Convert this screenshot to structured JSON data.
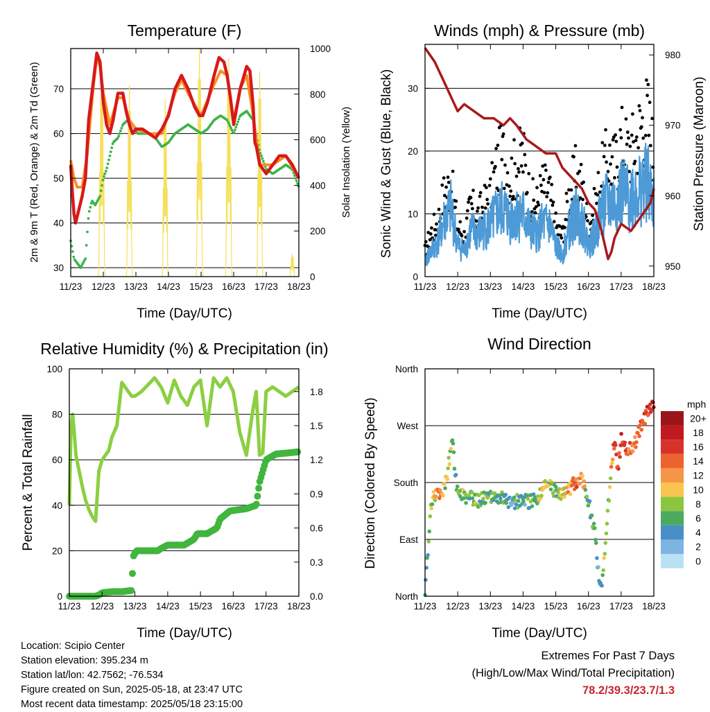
{
  "colors": {
    "temp2m": "#d7191c",
    "temp9m": "#fb8f21",
    "dewpoint": "#3cb34a",
    "solar": "#f6e05a",
    "wind": "#4d9ad6",
    "gust": "#000000",
    "pressure": "#a8191c",
    "rh": "#8ccf42",
    "precip": "#41b53e"
  },
  "chart_data": [
    {
      "type": "line",
      "title": "Temperature (F)",
      "xlabel": "Time (Day/UTC)",
      "ylabel": "2m & 9m T (Red, Orange) & 2m Td (Green)",
      "y2label": "Solar Insolation (Yellow)",
      "x_ticks": [
        "11/23",
        "12/23",
        "13/23",
        "14/23",
        "15/23",
        "16/23",
        "17/23",
        "18/23"
      ],
      "x_range": [
        0,
        7
      ],
      "ylim": [
        28,
        79
      ],
      "y_ticks": [
        30,
        40,
        50,
        60,
        70
      ],
      "y2lim": [
        0,
        1000
      ],
      "y2_ticks": [
        0,
        200,
        400,
        600,
        800,
        1000
      ],
      "grid": true,
      "series": [
        {
          "key": "temp2m",
          "x": [
            0,
            0.05,
            0.1,
            0.15,
            0.25,
            0.35,
            0.45,
            0.55,
            0.7,
            0.8,
            0.9,
            1.0,
            1.1,
            1.2,
            1.3,
            1.45,
            1.6,
            1.7,
            1.8,
            1.9,
            2.0,
            2.2,
            2.4,
            2.6,
            2.8,
            3.0,
            3.2,
            3.4,
            3.6,
            3.8,
            3.95,
            4.05,
            4.2,
            4.4,
            4.55,
            4.7,
            4.8,
            4.9,
            5.0,
            5.2,
            5.4,
            5.5,
            5.6,
            5.65,
            5.7,
            5.8,
            6.0,
            6.2,
            6.4,
            6.6,
            6.8,
            7.0
          ],
          "y": [
            53,
            47,
            42,
            40,
            43,
            46,
            50,
            63,
            72,
            78,
            76,
            67,
            62,
            60,
            63,
            69,
            69,
            65,
            62,
            60,
            61,
            61,
            60,
            59,
            61,
            64,
            70,
            73,
            70,
            66,
            64,
            64,
            67,
            73,
            77,
            76,
            73,
            68,
            62,
            70,
            75,
            74,
            66,
            58,
            57,
            53,
            51,
            53,
            55,
            55,
            53,
            50
          ]
        },
        {
          "key": "temp9m",
          "x": [
            0,
            0.1,
            0.2,
            0.35,
            0.5,
            0.7,
            0.8,
            0.9,
            1.0,
            1.2,
            1.45,
            1.6,
            1.8,
            2.0,
            2.4,
            2.8,
            3.2,
            3.4,
            3.6,
            4.0,
            4.4,
            4.6,
            4.8,
            5.0,
            5.2,
            5.4,
            5.6,
            5.8,
            6.2,
            6.6,
            7.0
          ],
          "y": [
            54,
            50,
            48,
            48,
            55,
            71,
            77,
            75,
            69,
            62,
            68,
            68,
            63,
            61,
            60,
            60,
            69,
            72,
            69,
            64,
            71,
            74,
            73,
            63,
            70,
            73,
            64,
            53,
            53,
            55,
            50
          ]
        },
        {
          "key": "dewpoint",
          "x": [
            0,
            0.1,
            0.2,
            0.3,
            0.45,
            0.55,
            0.65,
            0.75,
            0.9,
            1.0,
            1.1,
            1.2,
            1.3,
            1.45,
            1.6,
            1.75,
            1.9,
            2.05,
            2.2,
            2.4,
            2.6,
            2.8,
            3.0,
            3.2,
            3.4,
            3.6,
            3.8,
            4.0,
            4.2,
            4.4,
            4.6,
            4.8,
            5.0,
            5.2,
            5.4,
            5.6,
            5.8,
            6.0,
            6.2,
            6.4,
            6.6,
            6.8,
            7.0
          ],
          "y": [
            36,
            32,
            31,
            30,
            32,
            42,
            45,
            44,
            46,
            50,
            52,
            55,
            58,
            59,
            62,
            63,
            62,
            60,
            60,
            60,
            59,
            57,
            58,
            60,
            61,
            62,
            61,
            60,
            61,
            63,
            64,
            63,
            60,
            64,
            65,
            63,
            56,
            52,
            51,
            52,
            53,
            52,
            48
          ]
        },
        {
          "key": "solar",
          "y_axis": "right",
          "peaks": [
            {
              "center": 0.95,
              "width": 0.2,
              "value": 920
            },
            {
              "center": 1.8,
              "width": 0.18,
              "value": 840
            },
            {
              "center": 2.9,
              "width": 0.18,
              "value": 780
            },
            {
              "center": 3.95,
              "width": 0.2,
              "value": 1000
            },
            {
              "center": 4.85,
              "width": 0.2,
              "value": 960
            },
            {
              "center": 5.8,
              "width": 0.18,
              "value": 900
            },
            {
              "center": 6.8,
              "width": 0.15,
              "value": 100
            }
          ]
        }
      ]
    },
    {
      "type": "scatter",
      "title": "Winds (mph) & Pressure (mb)",
      "xlabel": "Time (Day/UTC)",
      "ylabel": "Sonic Wind & Gust (Blue, Black)",
      "y2label": "Station Pressure (Maroon)",
      "x_ticks": [
        "11/23",
        "12/23",
        "13/23",
        "14/23",
        "15/23",
        "16/23",
        "17/23",
        "18/23"
      ],
      "x_range": [
        0,
        7
      ],
      "ylim": [
        0,
        37
      ],
      "y_ticks": [
        0,
        10,
        20,
        30
      ],
      "y2lim": [
        948.5,
        981.5
      ],
      "y2_ticks": [
        950,
        960,
        970,
        980
      ],
      "grid": true,
      "series": [
        {
          "key": "gust",
          "x": [
            0,
            0.2,
            0.4,
            0.6,
            0.8,
            1.0,
            1.2,
            1.4,
            1.6,
            1.8,
            2.0,
            2.2,
            2.4,
            2.6,
            2.8,
            3.0,
            3.2,
            3.4,
            3.6,
            3.8,
            4.0,
            4.2,
            4.4,
            4.6,
            4.8,
            5.0,
            5.2,
            5.4,
            5.6,
            5.8,
            6.0,
            6.2,
            6.4,
            6.6,
            6.8,
            7.0
          ],
          "y": [
            5,
            9,
            11,
            17,
            18,
            10,
            8,
            14,
            12,
            14,
            16,
            22,
            24,
            20,
            22,
            24,
            16,
            14,
            18,
            17,
            10,
            8,
            16,
            20,
            18,
            10,
            14,
            20,
            24,
            22,
            27,
            25,
            26,
            30,
            32,
            24
          ]
        },
        {
          "key": "wind",
          "x": [
            0,
            0.2,
            0.4,
            0.6,
            0.8,
            1.0,
            1.2,
            1.4,
            1.6,
            1.8,
            2.0,
            2.2,
            2.4,
            2.6,
            2.8,
            3.0,
            3.2,
            3.4,
            3.6,
            3.8,
            4.0,
            4.2,
            4.4,
            4.6,
            4.8,
            5.0,
            5.2,
            5.4,
            5.6,
            5.8,
            6.0,
            6.2,
            6.4,
            6.6,
            6.8,
            7.0
          ],
          "y": [
            3,
            5,
            7,
            11,
            13,
            6,
            5,
            9,
            8,
            9,
            10,
            12,
            13,
            11,
            12,
            12,
            9,
            8,
            10,
            10,
            6,
            4,
            9,
            12,
            11,
            6,
            8,
            13,
            14,
            14,
            16,
            15,
            16,
            17,
            18,
            14
          ]
        },
        {
          "key": "pressure",
          "y_axis": "right",
          "x": [
            0,
            0.3,
            0.6,
            0.9,
            1.0,
            1.2,
            1.5,
            1.8,
            2.1,
            2.4,
            2.6,
            2.8,
            3.1,
            3.4,
            3.7,
            4.0,
            4.2,
            4.4,
            4.6,
            4.8,
            5.0,
            5.2,
            5.4,
            5.6,
            5.7,
            5.8,
            6.0,
            6.3,
            6.6,
            6.9,
            7.0
          ],
          "y": [
            981,
            979,
            976,
            973,
            972,
            973,
            972,
            971,
            971,
            970,
            971,
            970,
            968,
            967,
            966,
            966,
            964,
            963,
            962,
            961,
            959,
            958,
            955,
            951,
            952,
            954,
            956,
            955,
            957,
            959,
            961
          ]
        }
      ]
    },
    {
      "type": "line",
      "title": "Relative Humidity (%) & Precipitation (in)",
      "xlabel": "Time (Day/UTC)",
      "ylabel": "Percent & Total Rainfall",
      "x_ticks": [
        "11/23",
        "12/23",
        "13/23",
        "14/23",
        "15/23",
        "16/23",
        "17/23",
        "18/23"
      ],
      "x_range": [
        0,
        7
      ],
      "ylim": [
        0,
        100
      ],
      "y_ticks": [
        0,
        20,
        40,
        60,
        80,
        100
      ],
      "y2lim": [
        0,
        2.0
      ],
      "y2_ticks": [
        "0.0",
        "0.3",
        "0.6",
        "0.9",
        "1.2",
        "1.5",
        "1.8"
      ],
      "grid": true,
      "series": [
        {
          "key": "rh",
          "x": [
            0,
            0.05,
            0.1,
            0.15,
            0.2,
            0.3,
            0.4,
            0.5,
            0.6,
            0.7,
            0.8,
            0.9,
            1.0,
            1.1,
            1.2,
            1.3,
            1.45,
            1.6,
            1.8,
            1.9,
            2.0,
            2.2,
            2.4,
            2.6,
            2.8,
            3.0,
            3.2,
            3.4,
            3.6,
            3.8,
            4.0,
            4.2,
            4.4,
            4.6,
            4.8,
            5.0,
            5.2,
            5.4,
            5.6,
            5.7,
            5.8,
            5.9,
            6.0,
            6.2,
            6.4,
            6.6,
            6.8,
            7.0
          ],
          "y": [
            40,
            75,
            80,
            72,
            62,
            55,
            48,
            42,
            38,
            35,
            33,
            55,
            60,
            62,
            64,
            70,
            75,
            94,
            90,
            88,
            88,
            90,
            93,
            96,
            92,
            85,
            95,
            88,
            84,
            92,
            95,
            75,
            96,
            92,
            96,
            90,
            72,
            62,
            82,
            90,
            62,
            63,
            90,
            92,
            90,
            88,
            90,
            92
          ]
        },
        {
          "key": "precip",
          "y_axis": "right",
          "x": [
            0,
            0.8,
            0.9,
            1.0,
            1.3,
            1.6,
            1.9,
            1.95,
            2.05,
            2.5,
            2.7,
            2.8,
            3.0,
            3.5,
            3.8,
            3.9,
            4.2,
            4.5,
            4.6,
            4.9,
            5.4,
            5.7,
            5.8,
            6.0,
            6.3,
            7.0
          ],
          "y": [
            0,
            0,
            0.01,
            0.03,
            0.04,
            0.04,
            0.05,
            0.35,
            0.4,
            0.4,
            0.4,
            0.42,
            0.45,
            0.45,
            0.5,
            0.55,
            0.55,
            0.6,
            0.68,
            0.75,
            0.77,
            0.8,
            1.0,
            1.2,
            1.25,
            1.27
          ]
        }
      ]
    },
    {
      "type": "scatter",
      "title": "Wind Direction",
      "xlabel": "Time (Day/UTC)",
      "ylabel": "Direction (Colored By Speed)",
      "x_ticks": [
        "11/23",
        "12/23",
        "13/23",
        "14/23",
        "15/23",
        "16/23",
        "17/23",
        "18/23"
      ],
      "x_range": [
        0,
        7
      ],
      "ylim": [
        0,
        360
      ],
      "y_ticks": [
        "North",
        "East",
        "South",
        "West",
        "North"
      ],
      "grid": true,
      "legend": {
        "title": "mph",
        "labels": [
          "20+",
          "18",
          "16",
          "14",
          "12",
          "10",
          "8",
          "6",
          "4",
          "2",
          "0"
        ],
        "colors": [
          "#9a1519",
          "#c0191f",
          "#d7322a",
          "#ee6230",
          "#f69548",
          "#f9c550",
          "#8cc63f",
          "#4caa5e",
          "#4a8ec8",
          "#7db4e0",
          "#b9e1f6"
        ]
      },
      "series": [
        {
          "key": "direction",
          "x": [
            0,
            0.05,
            0.1,
            0.15,
            0.2,
            0.3,
            0.4,
            0.5,
            0.6,
            0.7,
            0.8,
            0.85,
            0.9,
            1.0,
            1.1,
            1.2,
            1.4,
            1.6,
            1.8,
            2.0,
            2.2,
            2.4,
            2.6,
            2.8,
            3.0,
            3.2,
            3.4,
            3.6,
            3.8,
            4.0,
            4.2,
            4.4,
            4.6,
            4.8,
            5.0,
            5.2,
            5.3,
            5.4,
            5.5,
            5.6,
            5.7,
            5.8,
            5.9,
            6.0,
            6.2,
            6.4,
            6.6,
            6.8,
            7.0
          ],
          "y": [
            10,
            40,
            70,
            120,
            150,
            160,
            160,
            165,
            175,
            200,
            240,
            260,
            200,
            160,
            165,
            155,
            155,
            150,
            155,
            160,
            150,
            155,
            150,
            150,
            150,
            150,
            155,
            170,
            175,
            165,
            160,
            170,
            180,
            190,
            150,
            100,
            40,
            20,
            60,
            140,
            200,
            250,
            200,
            250,
            230,
            240,
            270,
            290,
            310
          ],
          "speed": [
            4,
            4,
            6,
            8,
            8,
            10,
            12,
            14,
            8,
            8,
            8,
            8,
            6,
            6,
            6,
            8,
            6,
            8,
            6,
            6,
            6,
            6,
            4,
            6,
            4,
            6,
            6,
            10,
            8,
            6,
            8,
            12,
            14,
            12,
            6,
            6,
            4,
            6,
            8,
            6,
            12,
            14,
            16,
            18,
            14,
            12,
            14,
            16,
            18
          ]
        }
      ]
    }
  ],
  "info": {
    "location": "Location: Scipio Center",
    "elevation": "Station elevation: 395.234 m",
    "latlon": "Station lat/lon: 42.7562; -76.534",
    "created": "Figure created on Sun, 2025-05-18, at 23:47 UTC",
    "latest": "Most recent data timestamp: 2025/05/18 23:15:00"
  },
  "extremes": {
    "title": "Extremes For Past 7 Days",
    "subtitle": "(High/Low/Max Wind/Total Precipitation)",
    "values": "78.2/39.3/23.7/1.3"
  }
}
